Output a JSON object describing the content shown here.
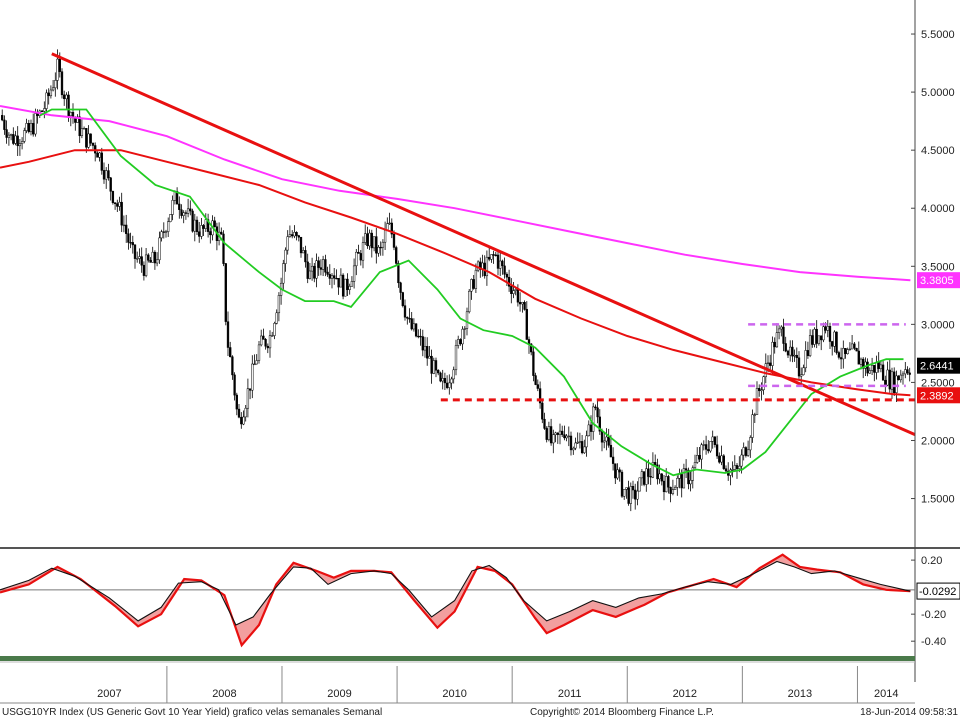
{
  "footer": {
    "left": "USGG10YR Index (US Generic Govt 10 Year Yield) grafico velas semanales  Semanal",
    "center": "Copyright© 2014 Bloomberg Finance L.P.",
    "right": "18-Jun-2014 09:58:31"
  },
  "chart_data": [
    {
      "type": "candlestick",
      "title": "",
      "xlabel": "",
      "ylabel": "",
      "x_range": [
        2006.55,
        2014.5
      ],
      "ylim": [
        1.1,
        5.75
      ],
      "y_ticks": [
        "1.5000",
        "2.0000",
        "2.5000",
        "3.0000",
        "3.5000",
        "4.0000",
        "4.5000",
        "5.0000",
        "5.5000"
      ],
      "x_ticks": [
        "2007",
        "2008",
        "2009",
        "2010",
        "2011",
        "2012",
        "2013",
        "2014"
      ],
      "price_path": [
        [
          2006.55,
          4.8
        ],
        [
          2006.65,
          4.6
        ],
        [
          2006.8,
          4.65
        ],
        [
          2006.95,
          4.9
        ],
        [
          2007.0,
          5.05
        ],
        [
          2007.05,
          5.2
        ],
        [
          2007.12,
          4.95
        ],
        [
          2007.2,
          4.75
        ],
        [
          2007.3,
          4.6
        ],
        [
          2007.4,
          4.5
        ],
        [
          2007.5,
          4.2
        ],
        [
          2007.6,
          3.95
        ],
        [
          2007.7,
          3.6
        ],
        [
          2007.8,
          3.5
        ],
        [
          2007.9,
          3.55
        ],
        [
          2008.0,
          3.9
        ],
        [
          2008.08,
          4.1
        ],
        [
          2008.2,
          3.9
        ],
        [
          2008.3,
          3.8
        ],
        [
          2008.4,
          3.85
        ],
        [
          2008.48,
          3.7
        ],
        [
          2008.52,
          2.9
        ],
        [
          2008.58,
          2.5
        ],
        [
          2008.62,
          2.15
        ],
        [
          2008.7,
          2.4
        ],
        [
          2008.8,
          2.8
        ],
        [
          2008.9,
          2.9
        ],
        [
          2009.0,
          3.4
        ],
        [
          2009.05,
          3.8
        ],
        [
          2009.15,
          3.7
        ],
        [
          2009.25,
          3.4
        ],
        [
          2009.35,
          3.55
        ],
        [
          2009.45,
          3.45
        ],
        [
          2009.55,
          3.3
        ],
        [
          2009.65,
          3.55
        ],
        [
          2009.75,
          3.75
        ],
        [
          2009.85,
          3.6
        ],
        [
          2009.92,
          3.85
        ],
        [
          2009.97,
          3.75
        ],
        [
          2010.02,
          3.35
        ],
        [
          2010.1,
          3.0
        ],
        [
          2010.2,
          2.85
        ],
        [
          2010.3,
          2.65
        ],
        [
          2010.38,
          2.45
        ],
        [
          2010.45,
          2.55
        ],
        [
          2010.5,
          2.7
        ],
        [
          2010.6,
          3.1
        ],
        [
          2010.68,
          3.45
        ],
        [
          2010.78,
          3.5
        ],
        [
          2010.85,
          3.6
        ],
        [
          2010.95,
          3.4
        ],
        [
          2011.05,
          3.25
        ],
        [
          2011.12,
          3.0
        ],
        [
          2011.2,
          2.5
        ],
        [
          2011.28,
          2.15
        ],
        [
          2011.35,
          1.95
        ],
        [
          2011.45,
          2.1
        ],
        [
          2011.55,
          1.95
        ],
        [
          2011.65,
          2.0
        ],
        [
          2011.72,
          2.3
        ],
        [
          2011.8,
          2.0
        ],
        [
          2011.88,
          1.8
        ],
        [
          2011.95,
          1.6
        ],
        [
          2012.05,
          1.5
        ],
        [
          2012.15,
          1.7
        ],
        [
          2012.25,
          1.75
        ],
        [
          2012.35,
          1.6
        ],
        [
          2012.45,
          1.65
        ],
        [
          2012.55,
          1.7
        ],
        [
          2012.62,
          1.85
        ],
        [
          2012.72,
          2.0
        ],
        [
          2012.8,
          1.9
        ],
        [
          2012.88,
          1.75
        ],
        [
          2012.95,
          1.72
        ],
        [
          2013.05,
          2.0
        ],
        [
          2013.12,
          2.35
        ],
        [
          2013.2,
          2.6
        ],
        [
          2013.28,
          2.85
        ],
        [
          2013.35,
          2.95
        ],
        [
          2013.42,
          2.7
        ],
        [
          2013.5,
          2.6
        ],
        [
          2013.58,
          2.85
        ],
        [
          2013.65,
          2.9
        ],
        [
          2013.72,
          3.0
        ],
        [
          2013.8,
          2.85
        ],
        [
          2013.88,
          2.7
        ],
        [
          2013.95,
          2.75
        ],
        [
          2014.02,
          2.7
        ],
        [
          2014.1,
          2.6
        ],
        [
          2014.18,
          2.65
        ],
        [
          2014.25,
          2.55
        ],
        [
          2014.32,
          2.5
        ],
        [
          2014.4,
          2.62
        ],
        [
          2014.46,
          2.64
        ]
      ],
      "ma_green": [
        [
          2006.9,
          4.8
        ],
        [
          2007.0,
          4.85
        ],
        [
          2007.3,
          4.85
        ],
        [
          2007.6,
          4.45
        ],
        [
          2007.9,
          4.2
        ],
        [
          2008.2,
          4.1
        ],
        [
          2008.5,
          3.7
        ],
        [
          2008.8,
          3.45
        ],
        [
          2009.0,
          3.3
        ],
        [
          2009.2,
          3.2
        ],
        [
          2009.45,
          3.2
        ],
        [
          2009.6,
          3.15
        ],
        [
          2009.85,
          3.45
        ],
        [
          2010.1,
          3.55
        ],
        [
          2010.35,
          3.3
        ],
        [
          2010.55,
          3.05
        ],
        [
          2010.75,
          2.95
        ],
        [
          2011.0,
          2.9
        ],
        [
          2011.2,
          2.8
        ],
        [
          2011.45,
          2.55
        ],
        [
          2011.7,
          2.15
        ],
        [
          2011.95,
          1.95
        ],
        [
          2012.2,
          1.8
        ],
        [
          2012.4,
          1.7
        ],
        [
          2012.6,
          1.75
        ],
        [
          2012.85,
          1.72
        ],
        [
          2013.0,
          1.75
        ],
        [
          2013.2,
          1.9
        ],
        [
          2013.4,
          2.15
        ],
        [
          2013.6,
          2.4
        ],
        [
          2013.85,
          2.55
        ],
        [
          2014.1,
          2.65
        ],
        [
          2014.25,
          2.7
        ],
        [
          2014.4,
          2.7
        ]
      ],
      "ma_red": [
        [
          2006.55,
          4.35
        ],
        [
          2006.8,
          4.4
        ],
        [
          2007.2,
          4.5
        ],
        [
          2007.6,
          4.5
        ],
        [
          2008.0,
          4.4
        ],
        [
          2008.4,
          4.3
        ],
        [
          2008.8,
          4.2
        ],
        [
          2009.2,
          4.05
        ],
        [
          2009.6,
          3.92
        ],
        [
          2010.0,
          3.78
        ],
        [
          2010.4,
          3.62
        ],
        [
          2010.8,
          3.45
        ],
        [
          2011.2,
          3.22
        ],
        [
          2011.6,
          3.05
        ],
        [
          2012.0,
          2.9
        ],
        [
          2012.4,
          2.78
        ],
        [
          2012.8,
          2.68
        ],
        [
          2013.2,
          2.58
        ],
        [
          2013.6,
          2.5
        ],
        [
          2014.0,
          2.44
        ],
        [
          2014.3,
          2.4
        ],
        [
          2014.46,
          2.39
        ]
      ],
      "ma_magenta": [
        [
          2006.55,
          4.88
        ],
        [
          2007.0,
          4.8
        ],
        [
          2007.5,
          4.75
        ],
        [
          2008.0,
          4.62
        ],
        [
          2008.5,
          4.42
        ],
        [
          2009.0,
          4.25
        ],
        [
          2009.5,
          4.15
        ],
        [
          2010.0,
          4.08
        ],
        [
          2010.5,
          4.0
        ],
        [
          2011.0,
          3.9
        ],
        [
          2011.5,
          3.8
        ],
        [
          2012.0,
          3.7
        ],
        [
          2012.5,
          3.6
        ],
        [
          2013.0,
          3.52
        ],
        [
          2013.5,
          3.45
        ],
        [
          2014.0,
          3.41
        ],
        [
          2014.46,
          3.38
        ]
      ],
      "trendline": [
        [
          2007.0,
          5.33
        ],
        [
          2014.5,
          2.05
        ]
      ],
      "support_line": [
        [
          2010.38,
          2.35
        ],
        [
          2014.5,
          2.35
        ]
      ],
      "resistance_line": [
        [
          2013.05,
          3.0
        ],
        [
          2014.42,
          3.0
        ]
      ],
      "mid_line": [
        [
          2013.05,
          2.47
        ],
        [
          2014.42,
          2.47
        ]
      ],
      "last_values": [
        {
          "label": "3.3805",
          "value": 3.3805,
          "color": "#ff33ff"
        },
        {
          "label": "2.6441",
          "value": 2.6441,
          "color": "#000000"
        },
        {
          "label": "2.3892",
          "value": 2.3892,
          "color": "#e81010"
        }
      ]
    },
    {
      "type": "line",
      "title": "",
      "xlabel": "",
      "ylabel": "",
      "ylim": [
        -0.48,
        0.26
      ],
      "y_ticks": [
        "0.20",
        "-0.20",
        "-0.40"
      ],
      "zero_line": -0.02,
      "osc_black": [
        [
          2006.55,
          -0.02
        ],
        [
          2006.8,
          0.05
        ],
        [
          2007.0,
          0.14
        ],
        [
          2007.2,
          0.08
        ],
        [
          2007.5,
          -0.08
        ],
        [
          2007.75,
          -0.25
        ],
        [
          2007.95,
          -0.15
        ],
        [
          2008.1,
          0.03
        ],
        [
          2008.3,
          0.04
        ],
        [
          2008.45,
          -0.02
        ],
        [
          2008.6,
          -0.28
        ],
        [
          2008.75,
          -0.22
        ],
        [
          2008.9,
          -0.05
        ],
        [
          2009.1,
          0.15
        ],
        [
          2009.25,
          0.14
        ],
        [
          2009.4,
          0.02
        ],
        [
          2009.6,
          0.1
        ],
        [
          2009.8,
          0.12
        ],
        [
          2009.95,
          0.1
        ],
        [
          2010.1,
          -0.02
        ],
        [
          2010.3,
          -0.22
        ],
        [
          2010.5,
          -0.1
        ],
        [
          2010.65,
          0.12
        ],
        [
          2010.8,
          0.16
        ],
        [
          2010.95,
          0.07
        ],
        [
          2011.1,
          -0.1
        ],
        [
          2011.3,
          -0.25
        ],
        [
          2011.5,
          -0.18
        ],
        [
          2011.7,
          -0.1
        ],
        [
          2011.9,
          -0.15
        ],
        [
          2012.1,
          -0.08
        ],
        [
          2012.3,
          -0.05
        ],
        [
          2012.5,
          0.0
        ],
        [
          2012.7,
          0.04
        ],
        [
          2012.9,
          0.02
        ],
        [
          2013.1,
          0.1
        ],
        [
          2013.3,
          0.19
        ],
        [
          2013.45,
          0.15
        ],
        [
          2013.6,
          0.1
        ],
        [
          2013.8,
          0.12
        ],
        [
          2014.0,
          0.07
        ],
        [
          2014.2,
          0.02
        ],
        [
          2014.46,
          -0.03
        ]
      ],
      "osc_red": [
        [
          2006.55,
          -0.04
        ],
        [
          2006.8,
          0.02
        ],
        [
          2007.05,
          0.15
        ],
        [
          2007.25,
          0.06
        ],
        [
          2007.55,
          -0.14
        ],
        [
          2007.75,
          -0.29
        ],
        [
          2007.95,
          -0.2
        ],
        [
          2008.15,
          0.06
        ],
        [
          2008.3,
          0.05
        ],
        [
          2008.5,
          -0.06
        ],
        [
          2008.65,
          -0.43
        ],
        [
          2008.8,
          -0.28
        ],
        [
          2008.95,
          0.02
        ],
        [
          2009.1,
          0.18
        ],
        [
          2009.3,
          0.12
        ],
        [
          2009.45,
          0.07
        ],
        [
          2009.6,
          0.12
        ],
        [
          2009.8,
          0.12
        ],
        [
          2009.95,
          0.11
        ],
        [
          2010.15,
          -0.1
        ],
        [
          2010.35,
          -0.3
        ],
        [
          2010.5,
          -0.18
        ],
        [
          2010.7,
          0.15
        ],
        [
          2010.85,
          0.12
        ],
        [
          2011.0,
          0.02
        ],
        [
          2011.2,
          -0.23
        ],
        [
          2011.3,
          -0.34
        ],
        [
          2011.45,
          -0.28
        ],
        [
          2011.7,
          -0.17
        ],
        [
          2011.9,
          -0.22
        ],
        [
          2012.15,
          -0.13
        ],
        [
          2012.35,
          -0.04
        ],
        [
          2012.55,
          0.01
        ],
        [
          2012.75,
          0.06
        ],
        [
          2012.95,
          0.0
        ],
        [
          2013.15,
          0.14
        ],
        [
          2013.35,
          0.24
        ],
        [
          2013.5,
          0.15
        ],
        [
          2013.65,
          0.13
        ],
        [
          2013.85,
          0.11
        ],
        [
          2014.05,
          0.02
        ],
        [
          2014.25,
          -0.02
        ],
        [
          2014.46,
          -0.03
        ]
      ],
      "last_values": [
        {
          "label": "-0.0292",
          "value": -0.0292,
          "color": "#000000"
        }
      ]
    }
  ]
}
